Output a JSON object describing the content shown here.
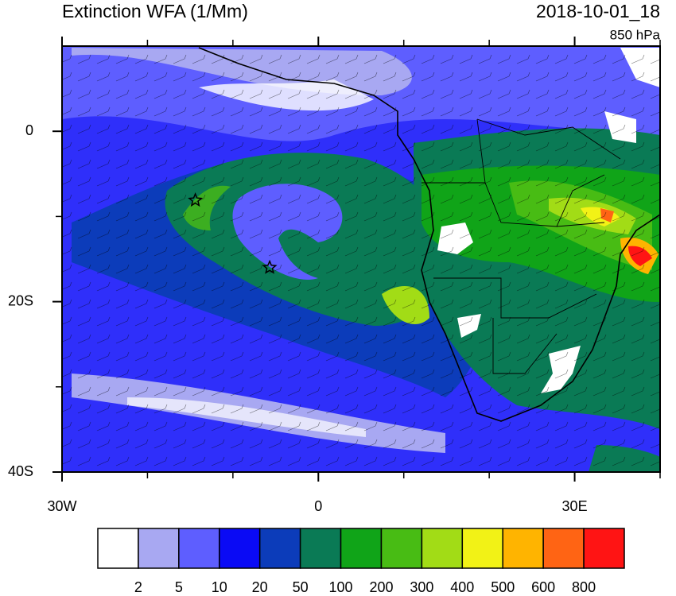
{
  "chart_data": {
    "type": "map",
    "title": "Extinction WFA (1/Mm)",
    "subtitle": "2018-10-01_18",
    "level": "850 hPa",
    "xlim": [
      -30,
      40
    ],
    "ylim": [
      -40,
      10
    ],
    "xticks": [
      {
        "value": -30,
        "label": "30W"
      },
      0,
      {
        "value": 30,
        "label": "30E"
      }
    ],
    "xminorticks": [
      -20,
      -10,
      10,
      20,
      40
    ],
    "yticks": [
      0,
      {
        "value": -20,
        "label": "20S"
      },
      {
        "value": -40,
        "label": "40S"
      }
    ],
    "yminorticks": [
      -10,
      -30
    ],
    "markers": {
      "x": [
        -14.4,
        -5.7
      ],
      "y": [
        -8.1,
        -16
      ]
    },
    "colorbar": {
      "levels": [
        2,
        5,
        10,
        20,
        50,
        100,
        200,
        300,
        400,
        500,
        600,
        800
      ],
      "colors": [
        "#ffffff",
        "#a8a8f2",
        "#5e5eff",
        "#0a0af5",
        "#0c3cba",
        "#0a7a55",
        "#10a418",
        "#48bc14",
        "#a2dc16",
        "#f2f216",
        "#ffb400",
        "#ff6414",
        "#ff1414"
      ]
    }
  }
}
